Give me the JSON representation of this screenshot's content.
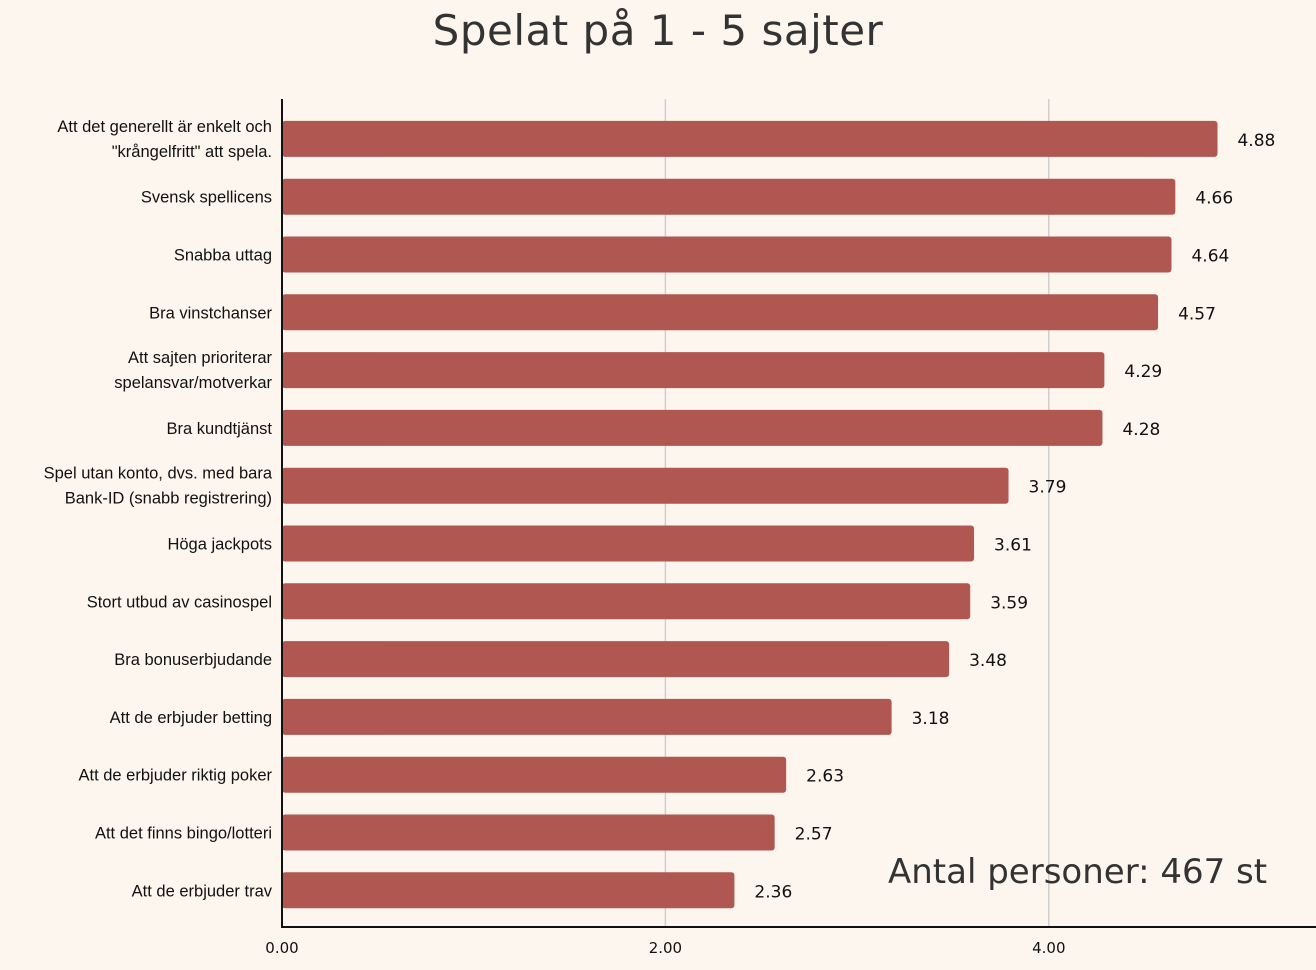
{
  "chart_data": {
    "type": "bar",
    "orientation": "horizontal",
    "title": "Spelat på 1 - 5 sajter",
    "annotation": "Antal personer: 467 st",
    "xlabel": "",
    "ylabel": "",
    "xlim": [
      0,
      5.39
    ],
    "x_ticks": [
      "0.00",
      "2.00",
      "4.00"
    ],
    "x_tick_values": [
      0,
      2,
      4
    ],
    "grid": true,
    "bar_color": "#b05751",
    "categories": [
      [
        "Att det generellt är enkelt och",
        "\"krångelfritt\" att spela."
      ],
      [
        "Svensk spellicens"
      ],
      [
        "Snabba uttag"
      ],
      [
        "Bra vinstchanser"
      ],
      [
        "Att sajten prioriterar",
        "spelansvar/motverkar"
      ],
      [
        "Bra kundtjänst"
      ],
      [
        "Spel utan konto, dvs. med bara",
        "Bank-ID (snabb registrering)"
      ],
      [
        "Höga jackpots"
      ],
      [
        "Stort utbud av casinospel"
      ],
      [
        "Bra bonuserbjudande"
      ],
      [
        "Att de erbjuder betting"
      ],
      [
        "Att de erbjuder riktig poker"
      ],
      [
        "Att det finns bingo/lotteri"
      ],
      [
        "Att de erbjuder trav"
      ]
    ],
    "values": [
      4.88,
      4.66,
      4.64,
      4.57,
      4.29,
      4.28,
      3.79,
      3.61,
      3.59,
      3.48,
      3.18,
      2.63,
      2.57,
      2.36
    ],
    "value_labels": [
      "4.88",
      "4.66",
      "4.64",
      "4.57",
      "4.29",
      "4.28",
      "3.79",
      "3.61",
      "3.59",
      "3.48",
      "3.18",
      "2.63",
      "2.57",
      "2.36"
    ]
  }
}
